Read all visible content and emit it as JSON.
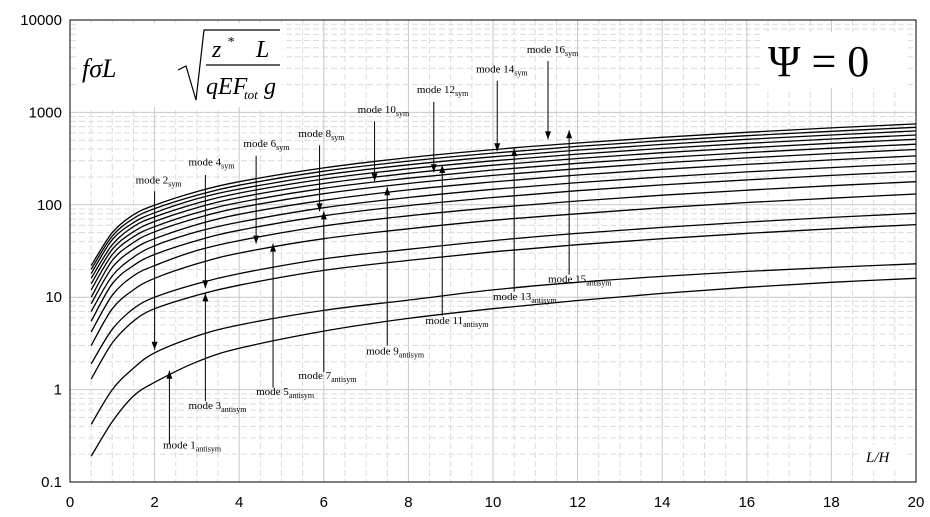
{
  "chart_data": {
    "type": "line",
    "title": "",
    "xlabel": "L/H",
    "ylabel": "",
    "x_scale": "linear",
    "y_scale": "log",
    "xlim": [
      0,
      20
    ],
    "ylim": [
      0.1,
      10000
    ],
    "x_ticks": [
      "0",
      "2",
      "4",
      "6",
      "8",
      "10",
      "12",
      "14",
      "16",
      "18",
      "20"
    ],
    "y_ticks": [
      "0.1",
      "1",
      "10",
      "100",
      "1000",
      "10000"
    ],
    "grid": true,
    "formula": {
      "lead": "fσL",
      "z": "z",
      "star": "*",
      "L": "L",
      "den": "qEF",
      "tot": "tot",
      "g": "g"
    },
    "annotation": "Ψ = 0",
    "x": [
      0.5,
      1,
      1.5,
      2,
      3,
      4,
      6,
      8,
      10,
      12,
      14,
      16,
      18,
      20
    ],
    "series": [
      {
        "values": [
          0.19,
          0.45,
          0.85,
          1.2,
          2.0,
          2.8,
          4.3,
          5.9,
          7.5,
          9.2,
          11,
          12.8,
          14.5,
          16
        ]
      },
      {
        "values": [
          0.42,
          1.0,
          1.7,
          2.5,
          3.8,
          5.0,
          7.2,
          9.3,
          12,
          14.5,
          16.8,
          19,
          21,
          23
        ]
      },
      {
        "values": [
          1.3,
          3.2,
          5.5,
          7.5,
          10.5,
          13.5,
          19.5,
          25,
          31,
          37,
          43,
          49,
          55,
          61
        ]
      },
      {
        "values": [
          1.9,
          4.5,
          7.5,
          10,
          14,
          18,
          26,
          33,
          41,
          49,
          57,
          65,
          73,
          81
        ]
      },
      {
        "values": [
          3.0,
          7.5,
          12,
          16,
          23,
          30,
          43,
          55,
          68,
          80,
          93,
          106,
          118,
          131
        ]
      },
      {
        "values": [
          4.2,
          10.5,
          17,
          22,
          32,
          41,
          59,
          76,
          93,
          110,
          127,
          144,
          161,
          178
        ]
      },
      {
        "values": [
          5.5,
          14,
          22,
          29,
          41,
          53,
          76,
          98,
          120,
          142,
          164,
          186,
          208,
          230
        ]
      },
      {
        "values": [
          7.0,
          17,
          27,
          36,
          51,
          65,
          93,
          120,
          147,
          174,
          200,
          227,
          253,
          280
        ]
      },
      {
        "values": [
          8.5,
          21,
          33,
          43,
          61,
          79,
          112,
          145,
          177,
          210,
          242,
          274,
          306,
          338
        ]
      },
      {
        "values": [
          10,
          25,
          39,
          51,
          72,
          93,
          132,
          170,
          208,
          246,
          284,
          322,
          359,
          397
        ]
      },
      {
        "values": [
          12,
          29,
          45,
          58,
          82,
          106,
          151,
          194,
          238,
          281,
          324,
          367,
          410,
          453
        ]
      },
      {
        "values": [
          14,
          33,
          51,
          66,
          93,
          120,
          170,
          219,
          268,
          317,
          366,
          414,
          463,
          511
        ]
      },
      {
        "values": [
          16,
          37,
          58,
          74,
          104,
          134,
          190,
          245,
          299,
          354,
          408,
          462,
          516,
          570
        ]
      },
      {
        "values": [
          18,
          42,
          64,
          82,
          116,
          148,
          210,
          271,
          331,
          391,
          451,
          511,
          570,
          630
        ]
      },
      {
        "values": [
          20,
          46,
          71,
          91,
          127,
          163,
          231,
          297,
          363,
          429,
          494,
          560,
          625,
          690
        ]
      },
      {
        "values": [
          22,
          50,
          78,
          99,
          139,
          178,
          251,
          324,
          396,
          467,
          538,
          609,
          680,
          750
        ]
      }
    ],
    "mode_labels": [
      {
        "text": "mode 1",
        "sub": "antisym",
        "x": 2.2,
        "y": 0.23,
        "ax": 2.35,
        "ay_from": 0.26,
        "ay_to": 1.6
      },
      {
        "text": "mode 2",
        "sub": "sym",
        "x": 1.55,
        "y": 170,
        "ax": 2.0,
        "ay_from": 140,
        "ay_to": 2.7
      },
      {
        "text": "mode 3",
        "sub": "antisym",
        "x": 2.8,
        "y": 0.62,
        "ax": 3.2,
        "ay_from": 0.75,
        "ay_to": 11
      },
      {
        "text": "mode 4",
        "sub": "sym",
        "x": 2.8,
        "y": 265,
        "ax": 3.2,
        "ay_from": 210,
        "ay_to": 12.5
      },
      {
        "text": "mode 5",
        "sub": "antisym",
        "x": 4.4,
        "y": 0.87,
        "ax": 4.8,
        "ay_from": 1.05,
        "ay_to": 38
      },
      {
        "text": "mode 6",
        "sub": "sym",
        "x": 4.1,
        "y": 420,
        "ax": 4.4,
        "ay_from": 340,
        "ay_to": 38
      },
      {
        "text": "mode 7",
        "sub": "antisym",
        "x": 5.4,
        "y": 1.3,
        "ax": 6.0,
        "ay_from": 1.55,
        "ay_to": 85
      },
      {
        "text": "mode 8",
        "sub": "sym",
        "x": 5.4,
        "y": 540,
        "ax": 5.9,
        "ay_from": 440,
        "ay_to": 85
      },
      {
        "text": "mode 9",
        "sub": "antisym",
        "x": 7.0,
        "y": 2.4,
        "ax": 7.5,
        "ay_from": 3.0,
        "ay_to": 155
      },
      {
        "text": "mode 10",
        "sub": "sym",
        "x": 6.8,
        "y": 980,
        "ax": 7.2,
        "ay_from": 800,
        "ay_to": 180
      },
      {
        "text": "mode 11",
        "sub": "antisym",
        "x": 8.4,
        "y": 5.1,
        "ax": 8.8,
        "ay_from": 6.3,
        "ay_to": 270
      },
      {
        "text": "mode 12",
        "sub": "sym",
        "x": 8.2,
        "y": 1620,
        "ax": 8.6,
        "ay_from": 1300,
        "ay_to": 225
      },
      {
        "text": "mode 13",
        "sub": "antisym",
        "x": 10.0,
        "y": 9.3,
        "ax": 10.5,
        "ay_from": 11.5,
        "ay_to": 410
      },
      {
        "text": "mode 14",
        "sub": "sym",
        "x": 9.6,
        "y": 2700,
        "ax": 10.1,
        "ay_from": 2200,
        "ay_to": 380
      },
      {
        "text": "mode 15",
        "sub": "antisym",
        "x": 11.3,
        "y": 14.5,
        "ax": 11.8,
        "ay_from": 17.5,
        "ay_to": 640
      },
      {
        "text": "mode 16",
        "sub": "sym",
        "x": 10.8,
        "y": 4400,
        "ax": 11.3,
        "ay_from": 3600,
        "ay_to": 510
      }
    ]
  }
}
